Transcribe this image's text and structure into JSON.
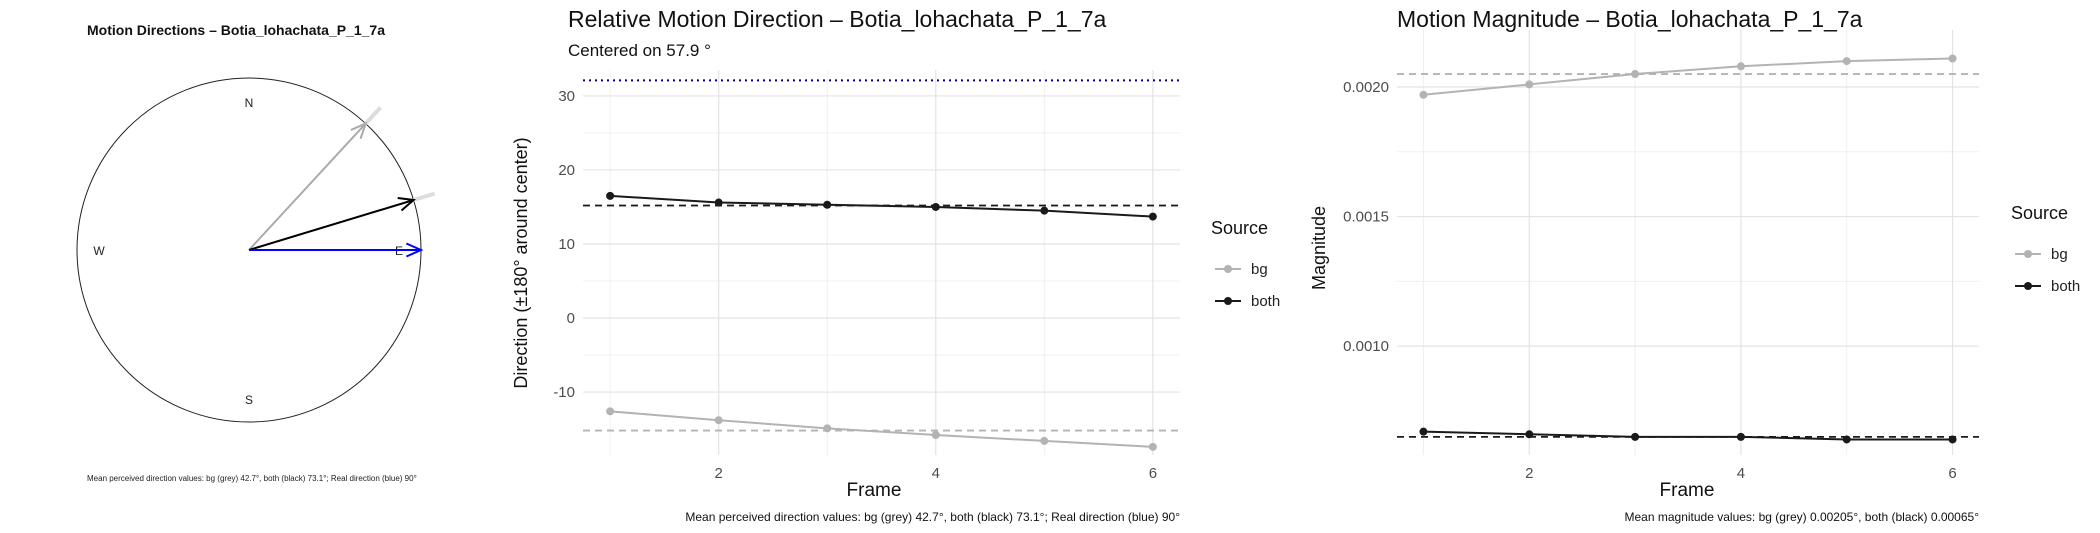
{
  "chart_data": [
    {
      "type": "polar-arrows",
      "title": "Motion Directions – Botia_lohachata_P_1_7a",
      "compass": {
        "N": "N",
        "E": "E",
        "S": "S",
        "W": "W"
      },
      "arrows": [
        {
          "name": "bg",
          "angle_deg": 42.7,
          "color": "#aaaaaa"
        },
        {
          "name": "both",
          "angle_deg": 73.1,
          "color": "#000000"
        },
        {
          "name": "real",
          "angle_deg": 90,
          "color": "#0000ff"
        }
      ],
      "caption": "Mean perceived direction values: bg (grey) 42.7°, both (black) 73.1°; Real direction (blue) 90°"
    },
    {
      "type": "line",
      "title": "Relative Motion Direction – Botia_lohachata_P_1_7a",
      "subtitle": "Centered on  57.9 °",
      "xlabel": "Frame",
      "ylabel": "Direction (±180° around center)",
      "xlim": [
        0.75,
        6.25
      ],
      "ylim": [
        -18.5,
        33.5
      ],
      "xticks": [
        2,
        4,
        6
      ],
      "yticks": [
        -10,
        0,
        10,
        20,
        30
      ],
      "x": [
        1,
        2,
        3,
        4,
        5,
        6
      ],
      "series": [
        {
          "name": "bg",
          "color": "#b3b3b3",
          "values": [
            -12.6,
            -13.8,
            -14.9,
            -15.8,
            -16.6,
            -17.4
          ],
          "mean": -15.2
        },
        {
          "name": "both",
          "color": "#1a1a1a",
          "values": [
            16.5,
            15.6,
            15.3,
            15.0,
            14.5,
            13.7
          ],
          "mean": 15.2
        }
      ],
      "reference": {
        "value": 32.1,
        "color": "#00008b"
      },
      "legend": {
        "title": "Source",
        "position": "right"
      },
      "caption": "Mean perceived direction values: bg (grey) 42.7°, both (black) 73.1°; Real direction (blue) 90°"
    },
    {
      "type": "line",
      "title": "Motion Magnitude – Botia_lohachata_P_1_7a",
      "xlabel": "Frame",
      "ylabel": "Magnitude",
      "xlim": [
        0.75,
        6.25
      ],
      "ylim": [
        0.00058,
        0.00222
      ],
      "xticks": [
        2,
        4,
        6
      ],
      "yticks": [
        0.001,
        0.0015,
        0.002
      ],
      "ytick_labels": [
        "0.0010",
        "0.0015",
        "0.0020"
      ],
      "x": [
        1,
        2,
        3,
        4,
        5,
        6
      ],
      "series": [
        {
          "name": "bg",
          "color": "#b3b3b3",
          "values": [
            0.00197,
            0.00201,
            0.00205,
            0.00208,
            0.0021,
            0.00211
          ],
          "mean": 0.00205
        },
        {
          "name": "both",
          "color": "#1a1a1a",
          "values": [
            0.00067,
            0.00066,
            0.00065,
            0.00065,
            0.00064,
            0.00064
          ],
          "mean": 0.00065
        }
      ],
      "legend": {
        "title": "Source",
        "position": "right"
      },
      "caption": "Mean magnitude values: bg (grey) 0.00205°, both (black) 0.00065°"
    }
  ]
}
